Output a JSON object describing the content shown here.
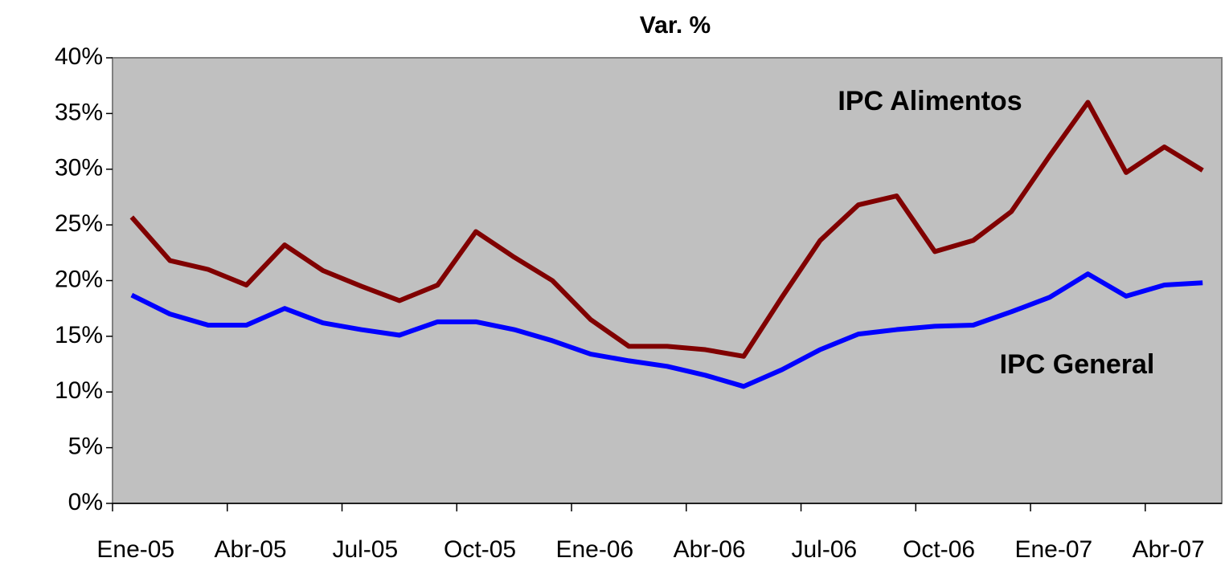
{
  "chart_data": {
    "type": "line",
    "title": "Var. %",
    "categories": [
      "Ene-05",
      null,
      null,
      "Abr-05",
      null,
      null,
      "Jul-05",
      null,
      null,
      "Oct-05",
      null,
      null,
      "Ene-06",
      null,
      null,
      "Abr-06",
      null,
      null,
      "Jul-06",
      null,
      null,
      "Oct-06",
      null,
      null,
      "Ene-07",
      null,
      null,
      "Abr-07",
      null
    ],
    "series": [
      {
        "name": "IPC Alimentos",
        "color": "#800000",
        "values": [
          25.7,
          21.8,
          21.0,
          19.6,
          23.2,
          20.9,
          19.5,
          18.2,
          19.6,
          24.4,
          22.1,
          20.0,
          16.5,
          14.1,
          14.1,
          13.8,
          13.2,
          18.5,
          23.6,
          26.8,
          27.6,
          22.6,
          23.6,
          26.2,
          31.2,
          36.0,
          29.7,
          32.0,
          29.9
        ]
      },
      {
        "name": "IPC General",
        "color": "#0000ff",
        "values": [
          18.7,
          17.0,
          16.0,
          16.0,
          17.5,
          16.2,
          15.6,
          15.1,
          16.3,
          16.3,
          15.6,
          14.6,
          13.4,
          12.8,
          12.3,
          11.5,
          10.5,
          12.0,
          13.8,
          15.2,
          15.6,
          15.9,
          16.0,
          17.2,
          18.5,
          20.6,
          18.6,
          19.6,
          19.8
        ]
      }
    ],
    "ylim": [
      0,
      40
    ],
    "yticks": [
      {
        "value": 0,
        "label": "0%"
      },
      {
        "value": 5,
        "label": "5%"
      },
      {
        "value": 10,
        "label": "10%"
      },
      {
        "value": 15,
        "label": "15%"
      },
      {
        "value": 20,
        "label": "20%"
      },
      {
        "value": 25,
        "label": "25%"
      },
      {
        "value": 30,
        "label": "30%"
      },
      {
        "value": 35,
        "label": "35%"
      },
      {
        "value": 40,
        "label": "40%"
      }
    ],
    "plot_background": "#c0c0c0"
  }
}
